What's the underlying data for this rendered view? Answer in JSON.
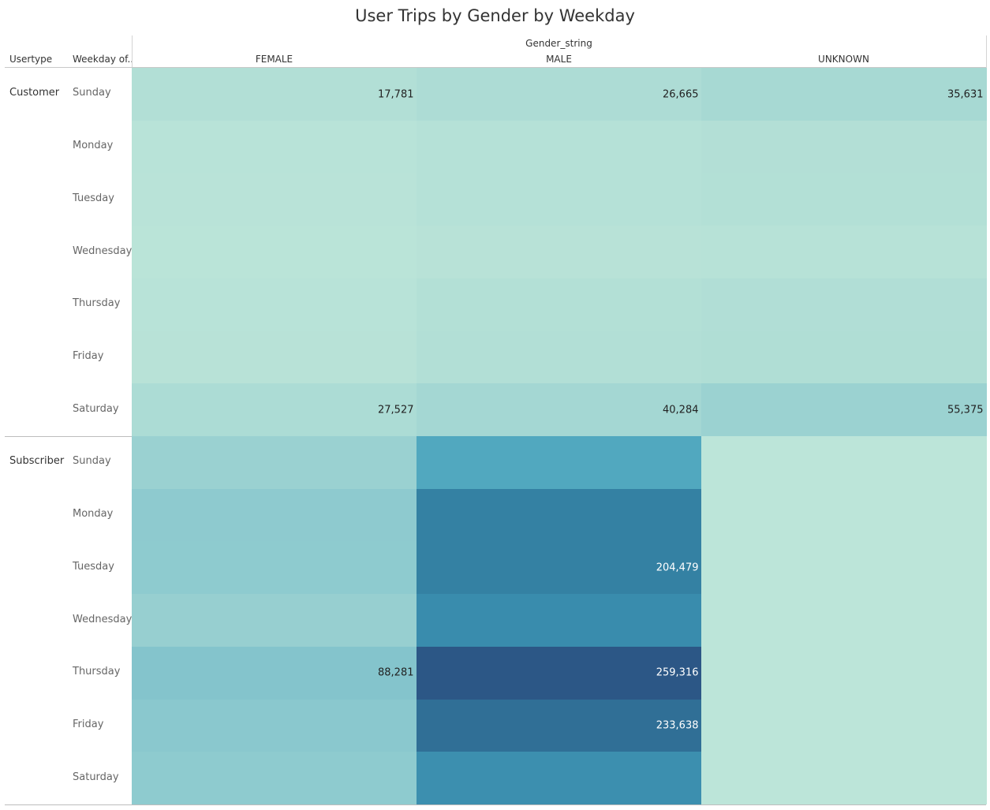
{
  "chart_data": {
    "type": "heatmap",
    "title": "User Trips by Gender by Weekday",
    "column_field": "Gender_string",
    "row_fields": [
      "Usertype",
      "Weekday of.."
    ],
    "columns": [
      "FEMALE",
      "MALE",
      "UNKNOWN"
    ],
    "groups": [
      {
        "name": "Customer",
        "rows": [
          {
            "weekday": "Sunday",
            "values": [
              17781,
              26665,
              35631
            ],
            "labels": [
              "17,781",
              "26,665",
              "35,631"
            ]
          },
          {
            "weekday": "Monday",
            "values": [
              8500,
              14500,
              17500
            ],
            "labels": [
              "",
              "",
              ""
            ]
          },
          {
            "weekday": "Tuesday",
            "values": [
              8000,
              14000,
              17000
            ],
            "labels": [
              "",
              "",
              ""
            ]
          },
          {
            "weekday": "Wednesday",
            "values": [
              6500,
              10000,
              11000
            ],
            "labels": [
              "",
              "",
              ""
            ]
          },
          {
            "weekday": "Thursday",
            "values": [
              9000,
              17000,
              20000
            ],
            "labels": [
              "",
              "",
              ""
            ]
          },
          {
            "weekday": "Friday",
            "values": [
              10000,
              18000,
              22000
            ],
            "labels": [
              "",
              "",
              ""
            ]
          },
          {
            "weekday": "Saturday",
            "values": [
              27527,
              40284,
              55375
            ],
            "labels": [
              "27,527",
              "40,284",
              "55,375"
            ]
          }
        ]
      },
      {
        "name": "Subscriber",
        "rows": [
          {
            "weekday": "Sunday",
            "values": [
              57000,
              140000,
              3000
            ],
            "labels": [
              "",
              "",
              ""
            ]
          },
          {
            "weekday": "Monday",
            "values": [
              76000,
              205000,
              3000
            ],
            "labels": [
              "",
              "",
              ""
            ]
          },
          {
            "weekday": "Tuesday",
            "values": [
              75000,
              204479,
              3000
            ],
            "labels": [
              "",
              "204,479",
              ""
            ]
          },
          {
            "weekday": "Wednesday",
            "values": [
              62000,
              180000,
              3000
            ],
            "labels": [
              "",
              "",
              ""
            ]
          },
          {
            "weekday": "Thursday",
            "values": [
              88281,
              259316,
              3000
            ],
            "labels": [
              "88,281",
              "259,316",
              ""
            ]
          },
          {
            "weekday": "Friday",
            "values": [
              80000,
              233638,
              3000
            ],
            "labels": [
              "",
              "233,638",
              ""
            ]
          },
          {
            "weekday": "Saturday",
            "values": [
              75000,
              175000,
              3000
            ],
            "labels": [
              "",
              "",
              ""
            ]
          }
        ]
      }
    ],
    "color_scale": {
      "min_value": 0,
      "max_value": 259316,
      "stops": [
        "#bee6d9",
        "#a6d8d3",
        "#8fcbcf",
        "#72b8c6",
        "#48a3bd",
        "#3788aa",
        "#327a9d",
        "#2c5786"
      ]
    },
    "legend": "none",
    "grid": false
  }
}
